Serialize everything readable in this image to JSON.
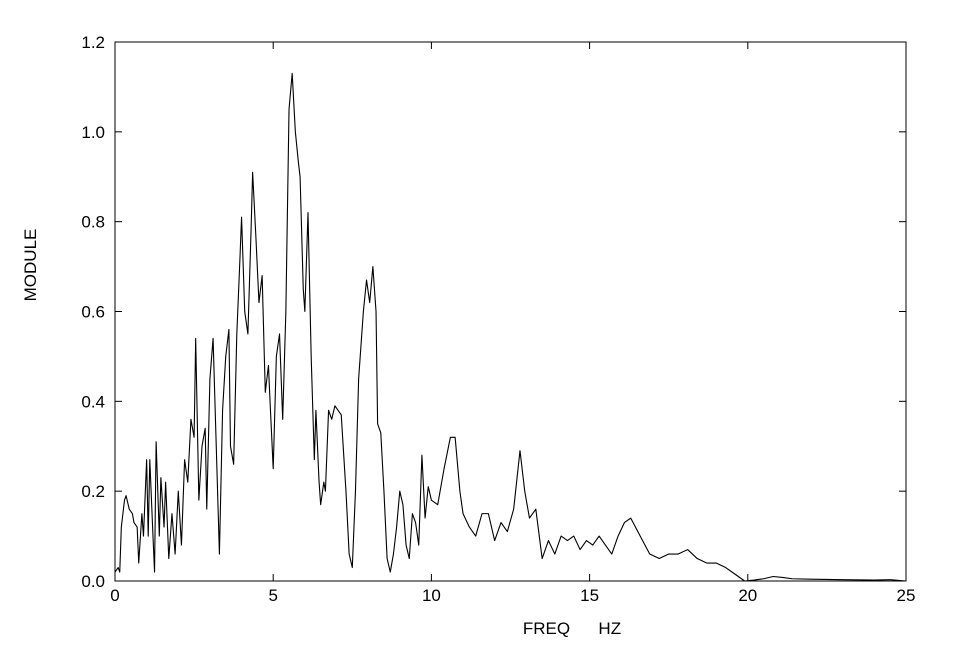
{
  "chart_data": {
    "type": "line",
    "x_label": "FREQ      HZ",
    "y_label": "MODULE",
    "color": "#000000",
    "x": [
      0,
      0.1,
      0.15,
      0.2,
      0.3,
      0.35,
      0.45,
      0.55,
      0.6,
      0.7,
      0.75,
      0.85,
      0.9,
      1.0,
      1.05,
      1.1,
      1.2,
      1.25,
      1.3,
      1.4,
      1.45,
      1.55,
      1.6,
      1.7,
      1.8,
      1.9,
      2.0,
      2.1,
      2.2,
      2.3,
      2.4,
      2.5,
      2.55,
      2.65,
      2.75,
      2.85,
      2.9,
      3.0,
      3.1,
      3.2,
      3.3,
      3.4,
      3.5,
      3.6,
      3.65,
      3.75,
      3.85,
      3.95,
      4.0,
      4.1,
      4.2,
      4.3,
      4.35,
      4.45,
      4.55,
      4.65,
      4.75,
      4.85,
      4.9,
      5.0,
      5.1,
      5.2,
      5.3,
      5.4,
      5.5,
      5.6,
      5.7,
      5.8,
      5.85,
      5.95,
      6.0,
      6.1,
      6.2,
      6.3,
      6.35,
      6.45,
      6.5,
      6.6,
      6.65,
      6.75,
      6.85,
      6.95,
      7.05,
      7.15,
      7.3,
      7.4,
      7.5,
      7.6,
      7.7,
      7.85,
      7.95,
      8.05,
      8.15,
      8.25,
      8.3,
      8.4,
      8.5,
      8.6,
      8.7,
      8.8,
      8.9,
      9.0,
      9.1,
      9.2,
      9.3,
      9.4,
      9.5,
      9.6,
      9.7,
      9.8,
      9.9,
      10.0,
      10.2,
      10.4,
      10.6,
      10.75,
      10.9,
      11.0,
      11.2,
      11.4,
      11.6,
      11.8,
      12.0,
      12.2,
      12.4,
      12.6,
      12.8,
      12.95,
      13.1,
      13.3,
      13.5,
      13.7,
      13.9,
      14.1,
      14.3,
      14.5,
      14.7,
      14.9,
      15.1,
      15.3,
      15.5,
      15.7,
      15.9,
      16.1,
      16.3,
      16.6,
      16.9,
      17.2,
      17.5,
      17.8,
      18.1,
      18.4,
      18.7,
      19.0,
      19.3,
      19.6,
      19.9,
      20.2,
      20.5,
      20.8,
      21.1,
      21.4,
      22.0,
      23.0,
      24.0,
      24.5,
      25
    ],
    "values": [
      0.02,
      0.03,
      0.02,
      0.12,
      0.18,
      0.19,
      0.16,
      0.15,
      0.13,
      0.12,
      0.04,
      0.15,
      0.1,
      0.27,
      0.1,
      0.27,
      0.1,
      0.02,
      0.31,
      0.1,
      0.23,
      0.12,
      0.22,
      0.05,
      0.15,
      0.06,
      0.2,
      0.08,
      0.27,
      0.22,
      0.36,
      0.32,
      0.54,
      0.18,
      0.3,
      0.34,
      0.16,
      0.45,
      0.54,
      0.3,
      0.06,
      0.38,
      0.5,
      0.56,
      0.3,
      0.26,
      0.55,
      0.72,
      0.81,
      0.6,
      0.55,
      0.78,
      0.91,
      0.77,
      0.62,
      0.68,
      0.42,
      0.48,
      0.4,
      0.25,
      0.5,
      0.55,
      0.36,
      0.6,
      1.05,
      1.13,
      1.0,
      0.93,
      0.9,
      0.65,
      0.6,
      0.82,
      0.5,
      0.27,
      0.38,
      0.22,
      0.17,
      0.22,
      0.2,
      0.38,
      0.36,
      0.39,
      0.38,
      0.37,
      0.2,
      0.06,
      0.03,
      0.2,
      0.45,
      0.6,
      0.67,
      0.62,
      0.7,
      0.6,
      0.35,
      0.33,
      0.2,
      0.05,
      0.02,
      0.06,
      0.12,
      0.2,
      0.17,
      0.08,
      0.05,
      0.15,
      0.13,
      0.08,
      0.28,
      0.14,
      0.21,
      0.18,
      0.17,
      0.25,
      0.32,
      0.32,
      0.2,
      0.15,
      0.12,
      0.1,
      0.15,
      0.15,
      0.09,
      0.13,
      0.11,
      0.16,
      0.29,
      0.2,
      0.14,
      0.16,
      0.05,
      0.09,
      0.06,
      0.1,
      0.09,
      0.1,
      0.07,
      0.09,
      0.08,
      0.1,
      0.08,
      0.06,
      0.1,
      0.13,
      0.14,
      0.1,
      0.06,
      0.05,
      0.06,
      0.06,
      0.07,
      0.05,
      0.04,
      0.04,
      0.03,
      0.015,
      0.0,
      0.002,
      0.005,
      0.01,
      0.008,
      0.005,
      0.004,
      0.003,
      0.002,
      0.003,
      0.0
    ],
    "xlim": [
      0,
      25
    ],
    "xticks": [
      0,
      5,
      10,
      15,
      20,
      25
    ],
    "ylim": [
      0,
      1.2
    ],
    "yticks": [
      {
        "value": 0,
        "label": "0.0"
      },
      0.2,
      0.4,
      0.6,
      0.8,
      {
        "value": 1,
        "label": "1.0"
      },
      1.2
    ]
  }
}
